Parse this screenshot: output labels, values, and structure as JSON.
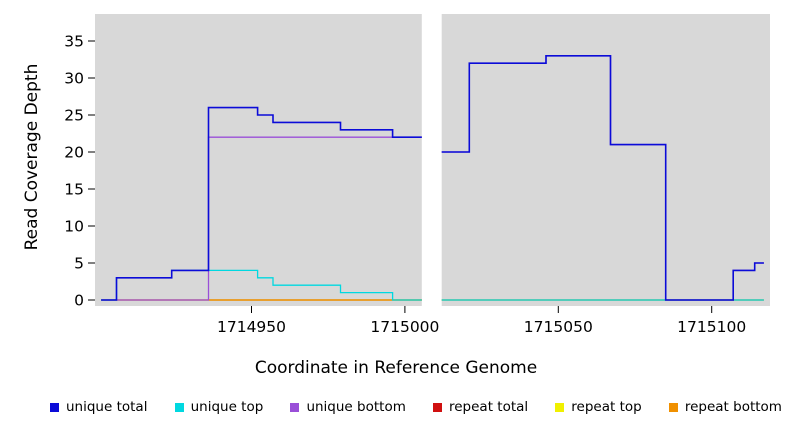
{
  "chart_data": {
    "type": "line",
    "style": "step",
    "title": "",
    "xlabel": "Coordinate in Reference Genome",
    "ylabel": "Read Coverage Depth",
    "xlim": [
      1714899,
      1715119
    ],
    "ylim": [
      0,
      38.6
    ],
    "x_ticks": [
      1714950,
      1715000,
      1715050,
      1715100
    ],
    "y_ticks": [
      0,
      5,
      10,
      15,
      20,
      25,
      30,
      35
    ],
    "gaps": [
      [
        1715005.5,
        1715012
      ]
    ],
    "panel_bg": "#d8d8d8",
    "series": [
      {
        "name": "repeat total",
        "color": "#d01010",
        "width": 1.2,
        "segments": [
          {
            "steps": [
              [
                1714901,
                0
              ]
            ],
            "end": 1715005.5
          },
          {
            "steps": [
              [
                1715012,
                0
              ]
            ],
            "end": 1715117
          }
        ]
      },
      {
        "name": "repeat top",
        "color": "#f0f000",
        "width": 1.2,
        "segments": [
          {
            "steps": [
              [
                1714901,
                0
              ]
            ],
            "end": 1715005.5
          },
          {
            "steps": [
              [
                1715012,
                0
              ]
            ],
            "end": 1715117
          }
        ]
      },
      {
        "name": "repeat bottom",
        "color": "#f09000",
        "width": 1.2,
        "segments": [
          {
            "steps": [
              [
                1714936,
                0
              ]
            ],
            "end": 1715005.5
          }
        ]
      },
      {
        "name": "unique bottom",
        "color": "#9a4fd8",
        "width": 1.3,
        "segments": [
          {
            "steps": [
              [
                1714901,
                0
              ],
              [
                1714936,
                22
              ]
            ],
            "end": 1715005.5
          },
          {
            "steps": [
              [
                1715012,
                20
              ],
              [
                1715021,
                32
              ],
              [
                1715046,
                33
              ],
              [
                1715067,
                21
              ],
              [
                1715085,
                0
              ],
              [
                1715107,
                4
              ],
              [
                1715114,
                5
              ]
            ],
            "end": 1715117
          }
        ]
      },
      {
        "name": "unique top",
        "color": "#00d8e0",
        "width": 1.3,
        "segments": [
          {
            "steps": [
              [
                1714901,
                0
              ],
              [
                1714906,
                3
              ],
              [
                1714924,
                4
              ],
              [
                1714952,
                3
              ],
              [
                1714957,
                2
              ],
              [
                1714979,
                1
              ],
              [
                1714996,
                0
              ]
            ],
            "end": 1715005.5
          },
          {
            "steps": [
              [
                1715012,
                0
              ]
            ],
            "end": 1715117
          }
        ]
      },
      {
        "name": "unique total",
        "color": "#0b0bd8",
        "width": 1.6,
        "segments": [
          {
            "steps": [
              [
                1714901,
                0
              ],
              [
                1714906,
                3
              ],
              [
                1714924,
                4
              ],
              [
                1714936,
                26
              ],
              [
                1714952,
                25
              ],
              [
                1714957,
                24
              ],
              [
                1714979,
                23
              ],
              [
                1714996,
                22
              ]
            ],
            "end": 1715005.5
          },
          {
            "steps": [
              [
                1715012,
                20
              ],
              [
                1715021,
                32
              ],
              [
                1715046,
                33
              ],
              [
                1715067,
                21
              ],
              [
                1715085,
                0
              ],
              [
                1715107,
                4
              ],
              [
                1715114,
                5
              ]
            ],
            "end": 1715117
          }
        ]
      }
    ],
    "legend": {
      "position": "bottom",
      "items": [
        {
          "label": "unique total",
          "color": "#0b0bd8"
        },
        {
          "label": "unique top",
          "color": "#00d8e0"
        },
        {
          "label": "unique bottom",
          "color": "#9a4fd8"
        },
        {
          "label": "repeat total",
          "color": "#d01010"
        },
        {
          "label": "repeat top",
          "color": "#f0f000"
        },
        {
          "label": "repeat bottom",
          "color": "#f09000"
        }
      ]
    }
  }
}
